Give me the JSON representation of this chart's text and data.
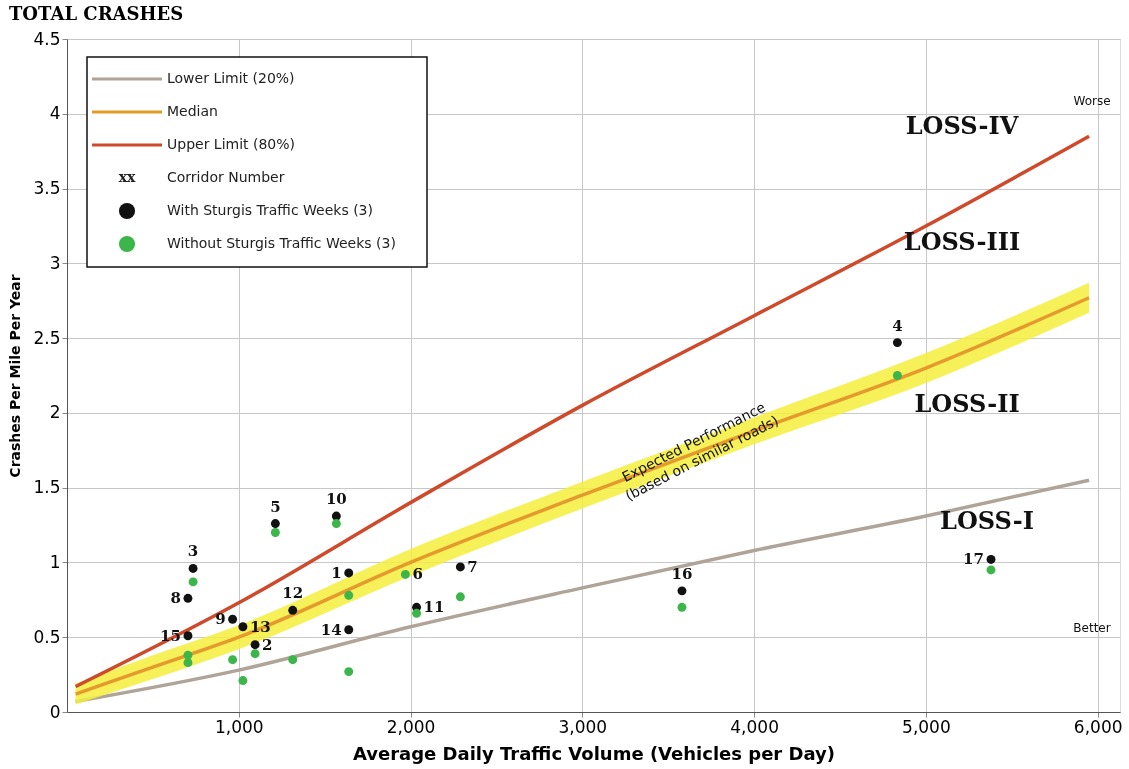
{
  "chart_data": {
    "type": "scatter",
    "title": "TOTAL CRASHES",
    "xlabel": "Average Daily Traffic Volume (Vehicles per Day)",
    "ylabel": "Crashes Per Mile Per Year",
    "xlim": [
      0,
      6130
    ],
    "ylim": [
      0,
      4.5
    ],
    "xticks": [
      {
        "value": 1000,
        "label": "1,000"
      },
      {
        "value": 2000,
        "label": "2,000"
      },
      {
        "value": 3000,
        "label": "3,000"
      },
      {
        "value": 4000,
        "label": "4,000"
      },
      {
        "value": 5000,
        "label": "5,000"
      },
      {
        "value": 6000,
        "label": "6,000"
      }
    ],
    "yticks": [
      0,
      0.5,
      1,
      1.5,
      2,
      2.5,
      3,
      3.5,
      4,
      4.5
    ],
    "grid": true,
    "legend": "top left",
    "series": [
      {
        "name": "Lower Limit (20%)",
        "type": "line",
        "color": "#b0a498",
        "x": [
          50,
          1000,
          2000,
          3000,
          4000,
          5000,
          5950
        ],
        "values": [
          0.07,
          0.28,
          0.57,
          0.83,
          1.08,
          1.31,
          1.55
        ]
      },
      {
        "name": "Median",
        "type": "line",
        "color": "#e59a2c",
        "x": [
          50,
          500,
          1000,
          2000,
          3000,
          4000,
          5000,
          5950
        ],
        "values": [
          0.12,
          0.3,
          0.5,
          1.0,
          1.45,
          1.88,
          2.3,
          2.77
        ],
        "lower": [
          0.05,
          0.22,
          0.42,
          0.91,
          1.36,
          1.79,
          2.2,
          2.67
        ],
        "upper": [
          0.19,
          0.38,
          0.58,
          1.09,
          1.54,
          1.97,
          2.4,
          2.87
        ]
      },
      {
        "name": "Upper Limit (80%)",
        "type": "line",
        "color": "#cf4a2b",
        "x": [
          50,
          1000,
          2000,
          3000,
          4000,
          5000,
          5950
        ],
        "values": [
          0.17,
          0.73,
          1.4,
          2.05,
          2.65,
          3.25,
          3.85
        ]
      },
      {
        "name": "With Sturgis Traffic Weeks (3)",
        "color": "#111111",
        "x": [
          1640,
          1095,
          734,
          4834,
          1213,
          1970,
          2290,
          704,
          964,
          1568,
          2035,
          1314,
          1024,
          1640,
          704,
          3580,
          5379
        ],
        "values": [
          0.93,
          0.45,
          0.96,
          2.47,
          1.26,
          null,
          0.97,
          0.76,
          0.62,
          1.31,
          0.7,
          0.68,
          0.57,
          0.55,
          0.51,
          0.81,
          1.02
        ]
      },
      {
        "name": "Without Sturgis Traffic Weeks (3)",
        "color": "#3cb54a",
        "x": [
          1640,
          1095,
          734,
          4834,
          1213,
          1970,
          2290,
          704,
          964,
          1568,
          2035,
          1314,
          1024,
          1640,
          704,
          3580,
          5379
        ],
        "values": [
          0.78,
          0.39,
          0.87,
          2.25,
          1.2,
          0.92,
          0.77,
          0.33,
          0.35,
          1.26,
          0.66,
          0.35,
          0.21,
          0.27,
          0.38,
          0.7,
          0.95
        ]
      }
    ],
    "annotations": [
      "xx",
      "Corridor Number",
      "LOSS-IV",
      "LOSS-III",
      "LOSS-II",
      "LOSS-I",
      "Worse",
      "Better",
      {
        "text": "Expected Performance\n(based on similar roads)",
        "x": 3650,
        "y": 1.8
      },
      {
        "text": "1",
        "x": 1640,
        "y": 0.93
      },
      {
        "text": "2",
        "x": 1095,
        "y": 0.45
      },
      {
        "text": "3",
        "x": 734,
        "y": 0.96
      },
      {
        "text": "4",
        "x": 4834,
        "y": 2.47
      },
      {
        "text": "5",
        "x": 1213,
        "y": 1.26
      },
      {
        "text": "6",
        "x": 1970,
        "y": 0.92
      },
      {
        "text": "7",
        "x": 2290,
        "y": 0.97
      },
      {
        "text": "8",
        "x": 704,
        "y": 0.76
      },
      {
        "text": "9",
        "x": 964,
        "y": 0.62
      },
      {
        "text": "10",
        "x": 1568,
        "y": 1.31
      },
      {
        "text": "11",
        "x": 2035,
        "y": 0.7
      },
      {
        "text": "12",
        "x": 1314,
        "y": 0.68
      },
      {
        "text": "13",
        "x": 1024,
        "y": 0.57
      },
      {
        "text": "14",
        "x": 1640,
        "y": 0.55
      },
      {
        "text": "15",
        "x": 704,
        "y": 0.51
      },
      {
        "text": "16",
        "x": 3580,
        "y": 0.81
      },
      {
        "text": "17",
        "x": 5379,
        "y": 1.02
      }
    ]
  }
}
